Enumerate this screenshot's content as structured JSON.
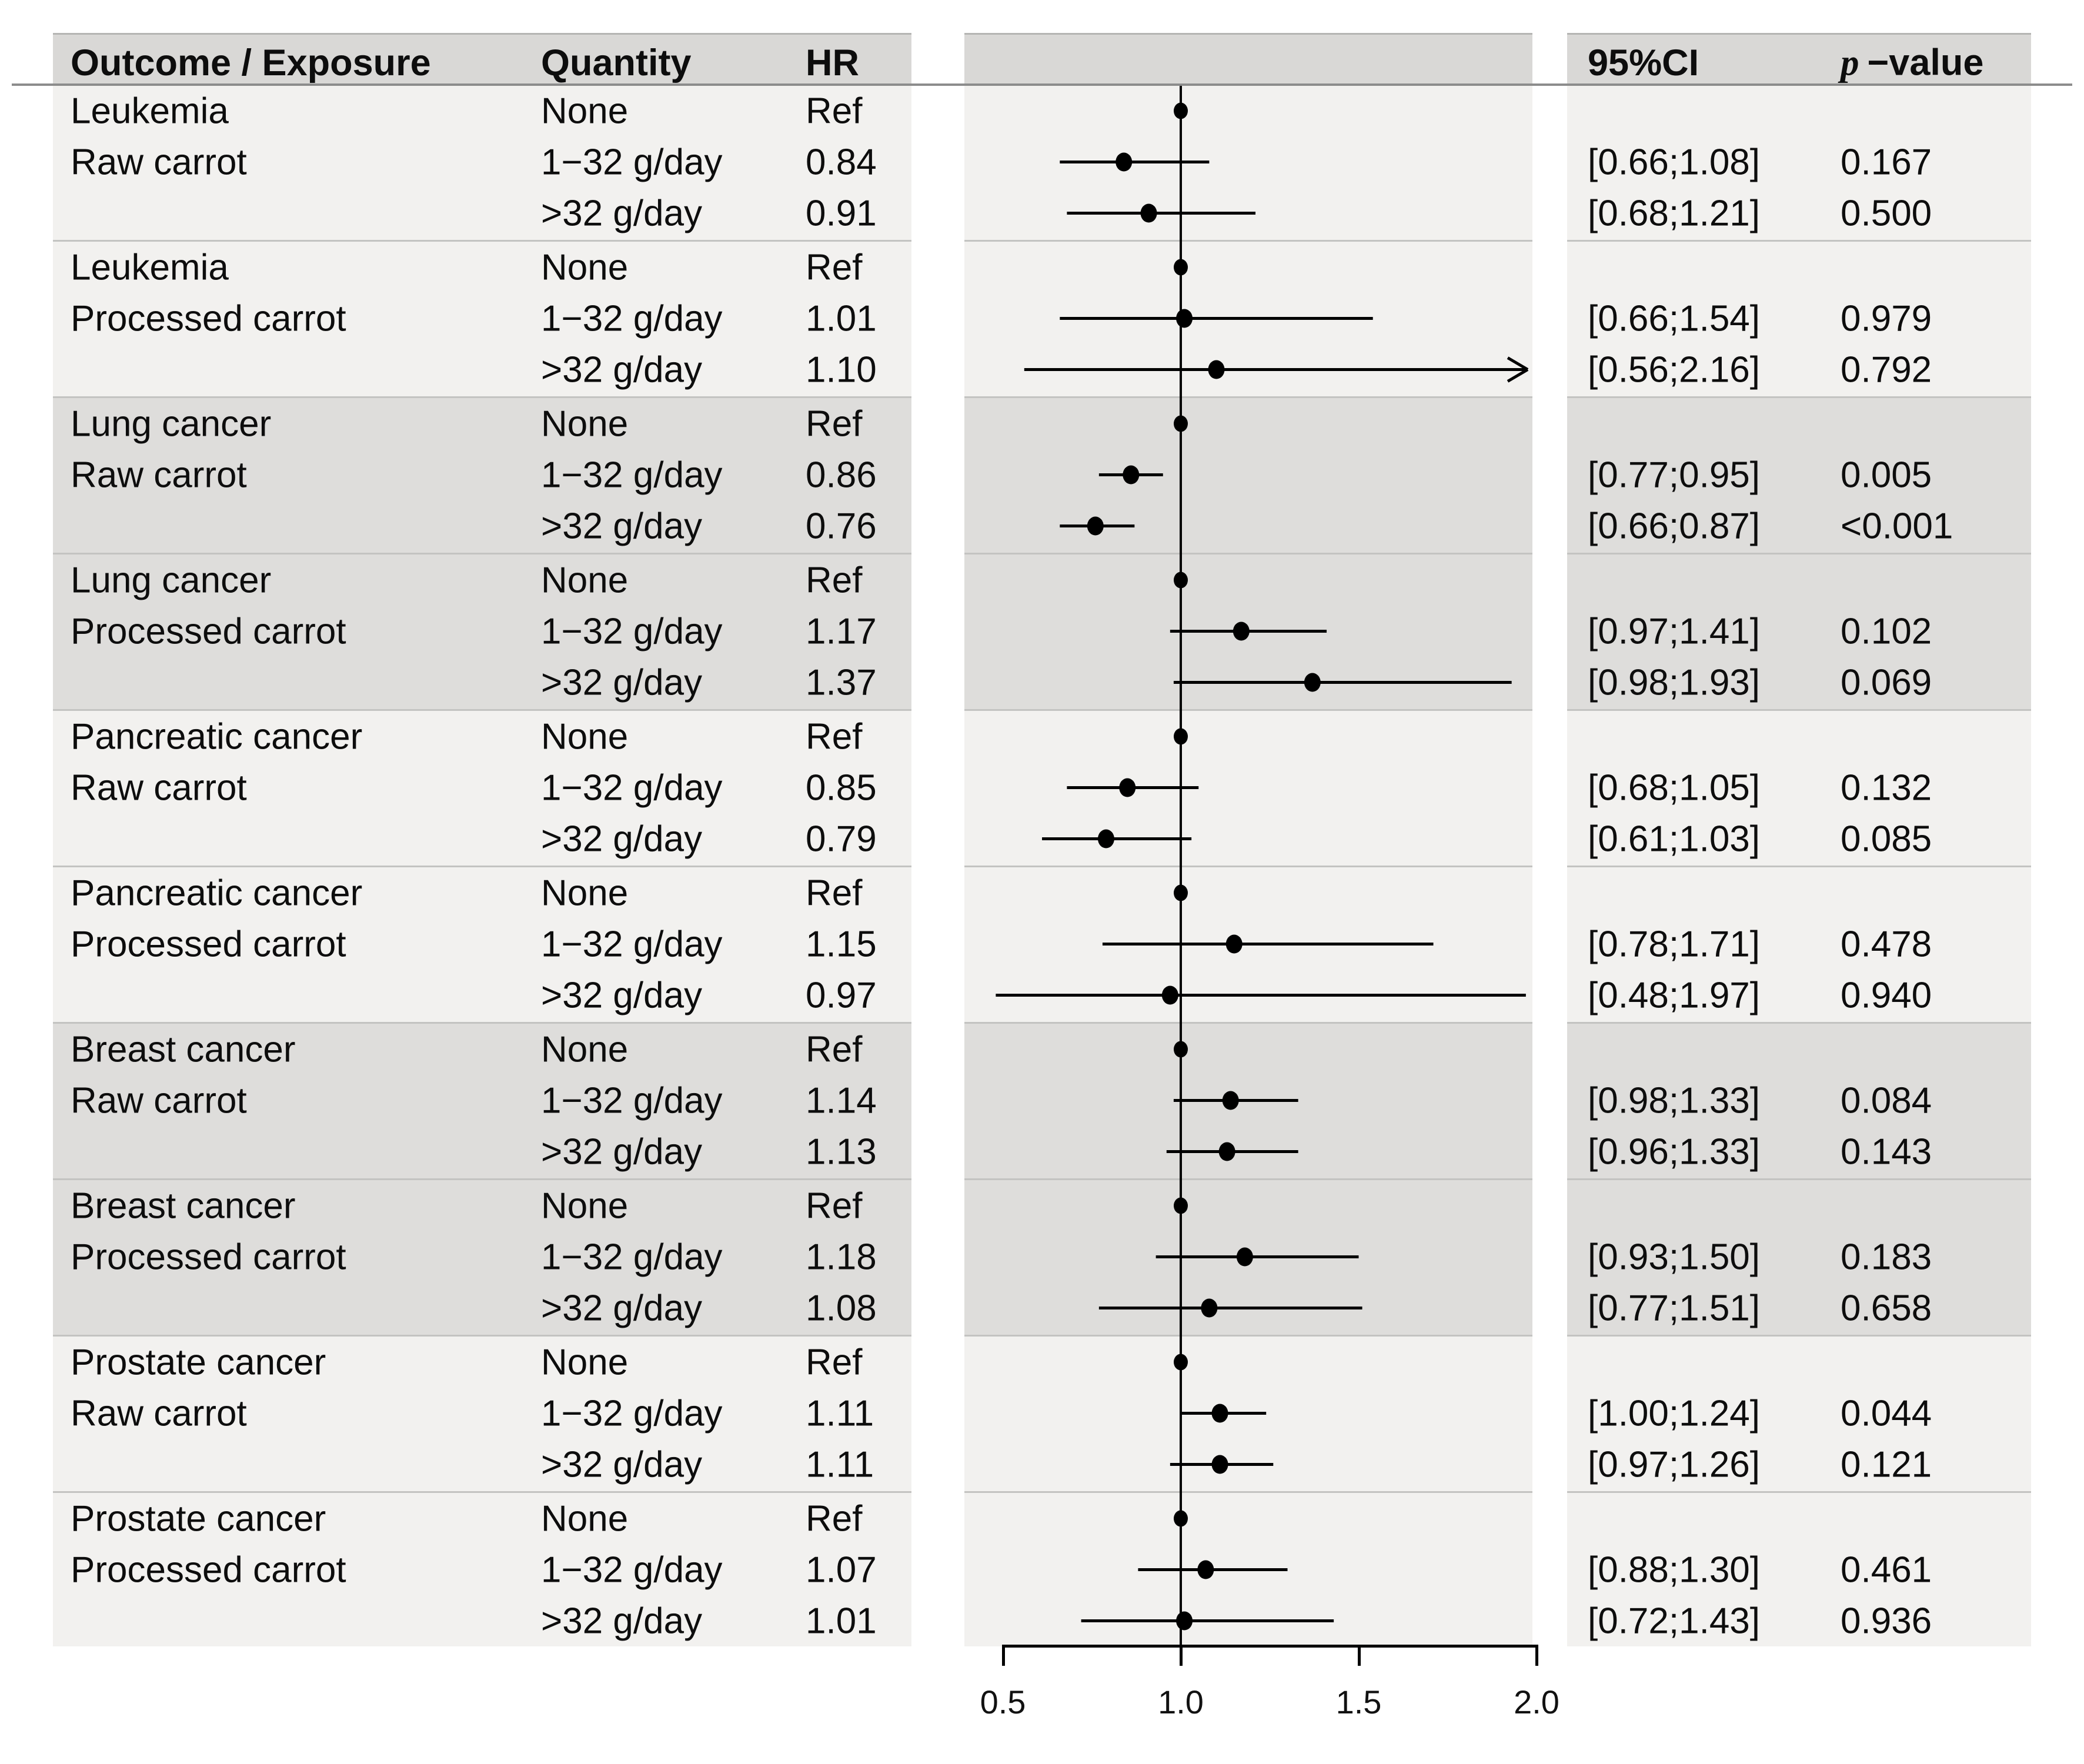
{
  "headers": {
    "outcome": "Outcome / Exposure",
    "quantity": "Quantity",
    "hr": "HR",
    "ci": "95%CI",
    "p_italic": "p",
    "p_suffix": "−value"
  },
  "colors": {
    "band_light": "#f2f1ef",
    "band_dark": "#dedddb",
    "header_band": "#d9d8d6",
    "separator": "#c3c3c1",
    "rule": "#8c8c8c",
    "marker": "#000000",
    "text": "#0d0d0d"
  },
  "chart_data": {
    "type": "forest",
    "title": "",
    "xlabel": "",
    "x_axis": {
      "ticks": [
        0.5,
        1.0,
        1.5,
        2.0
      ],
      "tick_labels": [
        "0.5",
        "1.0",
        "1.5",
        "2.0"
      ],
      "range": [
        0.5,
        2.0
      ],
      "reference_value": 1.0,
      "grid": false
    },
    "groups": [
      {
        "outcome": "Leukemia",
        "exposure": "Raw carrot",
        "shade": "light",
        "rows": [
          {
            "quantity": "None",
            "hr_label": "Ref",
            "hr": 1.0,
            "is_ref": true,
            "ci_label": "",
            "p_label": ""
          },
          {
            "quantity": "1−32 g/day",
            "hr_label": "0.84",
            "hr": 0.84,
            "ci_lo": 0.66,
            "ci_hi": 1.08,
            "ci_label": "[0.66;1.08]",
            "p_label": "0.167"
          },
          {
            "quantity": ">32 g/day",
            "hr_label": "0.91",
            "hr": 0.91,
            "ci_lo": 0.68,
            "ci_hi": 1.21,
            "ci_label": "[0.68;1.21]",
            "p_label": "0.500"
          }
        ]
      },
      {
        "outcome": "Leukemia",
        "exposure": "Processed carrot",
        "shade": "light",
        "rows": [
          {
            "quantity": "None",
            "hr_label": "Ref",
            "hr": 1.0,
            "is_ref": true,
            "ci_label": "",
            "p_label": ""
          },
          {
            "quantity": "1−32 g/day",
            "hr_label": "1.01",
            "hr": 1.01,
            "ci_lo": 0.66,
            "ci_hi": 1.54,
            "ci_label": "[0.66;1.54]",
            "p_label": "0.979"
          },
          {
            "quantity": ">32 g/day",
            "hr_label": "1.10",
            "hr": 1.1,
            "ci_lo": 0.56,
            "ci_hi": 2.16,
            "clipped": true,
            "ci_label": "[0.56;2.16]",
            "p_label": "0.792"
          }
        ]
      },
      {
        "outcome": "Lung cancer",
        "exposure": "Raw carrot",
        "shade": "dark",
        "rows": [
          {
            "quantity": "None",
            "hr_label": "Ref",
            "hr": 1.0,
            "is_ref": true,
            "ci_label": "",
            "p_label": ""
          },
          {
            "quantity": "1−32 g/day",
            "hr_label": "0.86",
            "hr": 0.86,
            "ci_lo": 0.77,
            "ci_hi": 0.95,
            "ci_label": "[0.77;0.95]",
            "p_label": "0.005"
          },
          {
            "quantity": ">32 g/day",
            "hr_label": "0.76",
            "hr": 0.76,
            "ci_lo": 0.66,
            "ci_hi": 0.87,
            "ci_label": "[0.66;0.87]",
            "p_label": "<0.001"
          }
        ]
      },
      {
        "outcome": "Lung cancer",
        "exposure": "Processed carrot",
        "shade": "dark",
        "rows": [
          {
            "quantity": "None",
            "hr_label": "Ref",
            "hr": 1.0,
            "is_ref": true,
            "ci_label": "",
            "p_label": ""
          },
          {
            "quantity": "1−32 g/day",
            "hr_label": "1.17",
            "hr": 1.17,
            "ci_lo": 0.97,
            "ci_hi": 1.41,
            "ci_label": "[0.97;1.41]",
            "p_label": "0.102"
          },
          {
            "quantity": ">32 g/day",
            "hr_label": "1.37",
            "hr": 1.37,
            "ci_lo": 0.98,
            "ci_hi": 1.93,
            "ci_label": "[0.98;1.93]",
            "p_label": "0.069"
          }
        ]
      },
      {
        "outcome": "Pancreatic cancer",
        "exposure": "Raw carrot",
        "shade": "light",
        "rows": [
          {
            "quantity": "None",
            "hr_label": "Ref",
            "hr": 1.0,
            "is_ref": true,
            "ci_label": "",
            "p_label": ""
          },
          {
            "quantity": "1−32 g/day",
            "hr_label": "0.85",
            "hr": 0.85,
            "ci_lo": 0.68,
            "ci_hi": 1.05,
            "ci_label": "[0.68;1.05]",
            "p_label": "0.132"
          },
          {
            "quantity": ">32 g/day",
            "hr_label": "0.79",
            "hr": 0.79,
            "ci_lo": 0.61,
            "ci_hi": 1.03,
            "ci_label": "[0.61;1.03]",
            "p_label": "0.085"
          }
        ]
      },
      {
        "outcome": "Pancreatic cancer",
        "exposure": "Processed carrot",
        "shade": "light",
        "rows": [
          {
            "quantity": "None",
            "hr_label": "Ref",
            "hr": 1.0,
            "is_ref": true,
            "ci_label": "",
            "p_label": ""
          },
          {
            "quantity": "1−32 g/day",
            "hr_label": "1.15",
            "hr": 1.15,
            "ci_lo": 0.78,
            "ci_hi": 1.71,
            "ci_label": "[0.78;1.71]",
            "p_label": "0.478"
          },
          {
            "quantity": ">32 g/day",
            "hr_label": "0.97",
            "hr": 0.97,
            "ci_lo": 0.48,
            "ci_hi": 1.97,
            "ci_label": "[0.48;1.97]",
            "p_label": "0.940"
          }
        ]
      },
      {
        "outcome": "Breast cancer",
        "exposure": "Raw carrot",
        "shade": "dark",
        "rows": [
          {
            "quantity": "None",
            "hr_label": "Ref",
            "hr": 1.0,
            "is_ref": true,
            "ci_label": "",
            "p_label": ""
          },
          {
            "quantity": "1−32 g/day",
            "hr_label": "1.14",
            "hr": 1.14,
            "ci_lo": 0.98,
            "ci_hi": 1.33,
            "ci_label": "[0.98;1.33]",
            "p_label": "0.084"
          },
          {
            "quantity": ">32 g/day",
            "hr_label": "1.13",
            "hr": 1.13,
            "ci_lo": 0.96,
            "ci_hi": 1.33,
            "ci_label": "[0.96;1.33]",
            "p_label": "0.143"
          }
        ]
      },
      {
        "outcome": "Breast cancer",
        "exposure": "Processed carrot",
        "shade": "dark",
        "rows": [
          {
            "quantity": "None",
            "hr_label": "Ref",
            "hr": 1.0,
            "is_ref": true,
            "ci_label": "",
            "p_label": ""
          },
          {
            "quantity": "1−32 g/day",
            "hr_label": "1.18",
            "hr": 1.18,
            "ci_lo": 0.93,
            "ci_hi": 1.5,
            "ci_label": "[0.93;1.50]",
            "p_label": "0.183"
          },
          {
            "quantity": ">32 g/day",
            "hr_label": "1.08",
            "hr": 1.08,
            "ci_lo": 0.77,
            "ci_hi": 1.51,
            "ci_label": "[0.77;1.51]",
            "p_label": "0.658"
          }
        ]
      },
      {
        "outcome": "Prostate cancer",
        "exposure": "Raw carrot",
        "shade": "light",
        "rows": [
          {
            "quantity": "None",
            "hr_label": "Ref",
            "hr": 1.0,
            "is_ref": true,
            "ci_label": "",
            "p_label": ""
          },
          {
            "quantity": "1−32 g/day",
            "hr_label": "1.11",
            "hr": 1.11,
            "ci_lo": 1.0,
            "ci_hi": 1.24,
            "ci_label": "[1.00;1.24]",
            "p_label": "0.044"
          },
          {
            "quantity": ">32 g/day",
            "hr_label": "1.11",
            "hr": 1.11,
            "ci_lo": 0.97,
            "ci_hi": 1.26,
            "ci_label": "[0.97;1.26]",
            "p_label": "0.121"
          }
        ]
      },
      {
        "outcome": "Prostate cancer",
        "exposure": "Processed carrot",
        "shade": "light",
        "rows": [
          {
            "quantity": "None",
            "hr_label": "Ref",
            "hr": 1.0,
            "is_ref": true,
            "ci_label": "",
            "p_label": ""
          },
          {
            "quantity": "1−32 g/day",
            "hr_label": "1.07",
            "hr": 1.07,
            "ci_lo": 0.88,
            "ci_hi": 1.3,
            "ci_label": "[0.88;1.30]",
            "p_label": "0.461"
          },
          {
            "quantity": ">32 g/day",
            "hr_label": "1.01",
            "hr": 1.01,
            "ci_lo": 0.72,
            "ci_hi": 1.43,
            "ci_label": "[0.72;1.43]",
            "p_label": "0.936"
          }
        ]
      }
    ]
  }
}
